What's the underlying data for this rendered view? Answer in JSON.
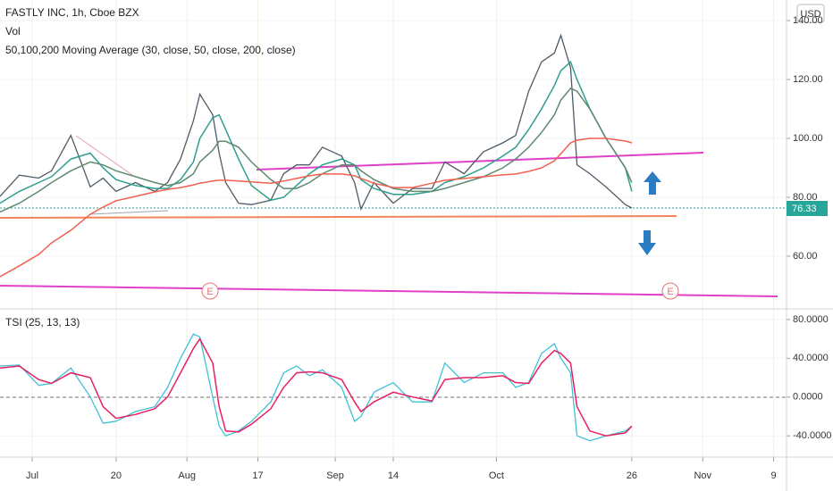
{
  "chart_data": [
    {
      "type": "line",
      "title": "FASTLY INC, 1h, Cboe BZX",
      "indicators": [
        "Vol",
        "50,100,200 Moving Average (30, close, 50, close, 200, close)"
      ],
      "currency": "USD",
      "last_price": 76.33,
      "earnings": [
        "E",
        "E"
      ],
      "x": [
        -5,
        -2,
        1,
        3,
        6,
        9,
        11,
        13,
        16,
        19,
        21,
        23,
        25,
        26,
        28,
        29,
        30,
        32,
        34,
        37,
        39,
        41,
        43,
        45,
        48,
        50,
        51,
        53,
        56,
        59,
        62,
        64,
        67,
        70,
        73,
        75,
        77,
        79,
        81,
        82,
        83.5,
        84.5,
        86.5,
        89,
        92,
        93
      ],
      "xlim": [
        -5,
        117
      ],
      "ylim": [
        42.4,
        147
      ],
      "yticks": [
        {
          "value": 60,
          "label": "60.00"
        },
        {
          "value": 80,
          "label": "80.00"
        },
        {
          "value": 100,
          "label": "100.00"
        },
        {
          "value": 120,
          "label": "120.00"
        },
        {
          "value": 140,
          "label": "140.00"
        }
      ],
      "series": [
        {
          "color": "#4f5b66",
          "values": [
            80.3,
            87.5,
            86.5,
            89,
            101,
            83.5,
            86.5,
            82,
            85,
            82,
            85,
            93,
            106,
            115,
            108,
            95,
            85,
            78,
            77.5,
            79,
            88,
            91,
            91,
            97,
            94,
            85,
            76,
            85,
            78,
            83,
            83,
            92,
            88,
            95.5,
            98.5,
            101,
            116,
            126,
            129,
            135,
            124,
            91,
            88,
            83.5,
            77.5,
            76.33
          ]
        },
        {
          "color": "#2e9e8f",
          "values": [
            78,
            82,
            85,
            87,
            93,
            95,
            90,
            86,
            84,
            83,
            83,
            86,
            92,
            100,
            107,
            108,
            103,
            93,
            84,
            79,
            80,
            84,
            88,
            91,
            93,
            91,
            86,
            83,
            81,
            81,
            82,
            85,
            87,
            90,
            94,
            97,
            103,
            110,
            118,
            123,
            126,
            120,
            110,
            100,
            90,
            82
          ]
        },
        {
          "color": "#5d8a6f",
          "values": [
            75,
            78,
            82,
            85,
            89,
            92,
            91,
            89,
            87,
            85,
            84,
            85,
            88,
            92,
            96,
            99,
            99,
            97,
            92,
            86,
            83,
            83,
            85,
            88,
            91,
            91,
            89,
            86,
            83,
            82,
            82,
            83,
            85,
            87,
            90,
            93,
            97,
            102,
            108,
            113,
            117,
            116,
            110,
            100,
            90,
            85
          ]
        },
        {
          "color": "#f0604d",
          "values": [
            53,
            56.7,
            60.6,
            64.5,
            68.8,
            74.2,
            76.7,
            78.8,
            80.3,
            81.8,
            82.7,
            83.3,
            84.2,
            84.8,
            85.5,
            85.8,
            85.8,
            85.5,
            85.2,
            84.8,
            85.5,
            86.4,
            87.3,
            87.9,
            87.9,
            87.3,
            86.4,
            84.8,
            83.3,
            83.3,
            84.8,
            85.8,
            86.4,
            87,
            87.6,
            87.9,
            88.8,
            90,
            92.4,
            94.8,
            98.5,
            99.4,
            100,
            100,
            99.1,
            98.5
          ]
        }
      ]
    },
    {
      "type": "line",
      "title": "TSI (25, 13, 13)",
      "x": [
        -5,
        -2,
        1,
        3,
        6,
        9,
        11,
        13,
        16,
        19,
        21,
        23,
        25,
        26,
        28,
        29,
        30,
        32,
        34,
        37,
        39,
        41,
        43,
        45,
        48,
        50,
        51,
        53,
        56,
        59,
        62,
        64,
        67,
        70,
        73,
        75,
        77,
        79,
        81,
        82,
        83.5,
        84.5,
        86.5,
        89,
        92,
        93
      ],
      "xlim": [
        -5,
        117
      ],
      "xticks": [
        {
          "value": 0,
          "label": "Jul"
        },
        {
          "value": 13,
          "label": "20"
        },
        {
          "value": 24,
          "label": "Aug"
        },
        {
          "value": 35,
          "label": "17"
        },
        {
          "value": 47,
          "label": "Sep"
        },
        {
          "value": 56,
          "label": "14"
        },
        {
          "value": 72,
          "label": "Oct"
        },
        {
          "value": 93,
          "label": "26"
        },
        {
          "value": 104,
          "label": "Nov"
        },
        {
          "value": 115,
          "label": "9"
        }
      ],
      "ylim": [
        -61,
        90
      ],
      "yticks": [
        {
          "value": -40,
          "label": "-40.0000"
        },
        {
          "value": 0,
          "label": "0.0000"
        },
        {
          "value": 40,
          "label": "40.0000"
        },
        {
          "value": 80,
          "label": "80.0000"
        }
      ],
      "series": [
        {
          "color": "#3fc1d6",
          "values": [
            32,
            33,
            12,
            14,
            30,
            0,
            -27,
            -25,
            -15,
            -10,
            10,
            40,
            65,
            62,
            0,
            -30,
            -40,
            -35,
            -25,
            -5,
            25,
            32,
            22,
            28,
            10,
            -25,
            -20,
            5,
            15,
            -5,
            -5,
            35,
            15,
            25,
            25,
            10,
            15,
            45,
            55,
            40,
            25,
            -40,
            -45,
            -40,
            -35,
            -30
          ]
        },
        {
          "color": "#e91e63",
          "values": [
            30,
            32,
            18,
            14,
            25,
            20,
            -10,
            -22,
            -18,
            -12,
            0,
            25,
            50,
            60,
            35,
            -10,
            -35,
            -36,
            -28,
            -12,
            10,
            25,
            26,
            25,
            18,
            -5,
            -15,
            -5,
            5,
            0,
            -4,
            18,
            20,
            20,
            22,
            15,
            14,
            35,
            48,
            45,
            35,
            -10,
            -35,
            -40,
            -37,
            -30
          ]
        }
      ]
    }
  ]
}
